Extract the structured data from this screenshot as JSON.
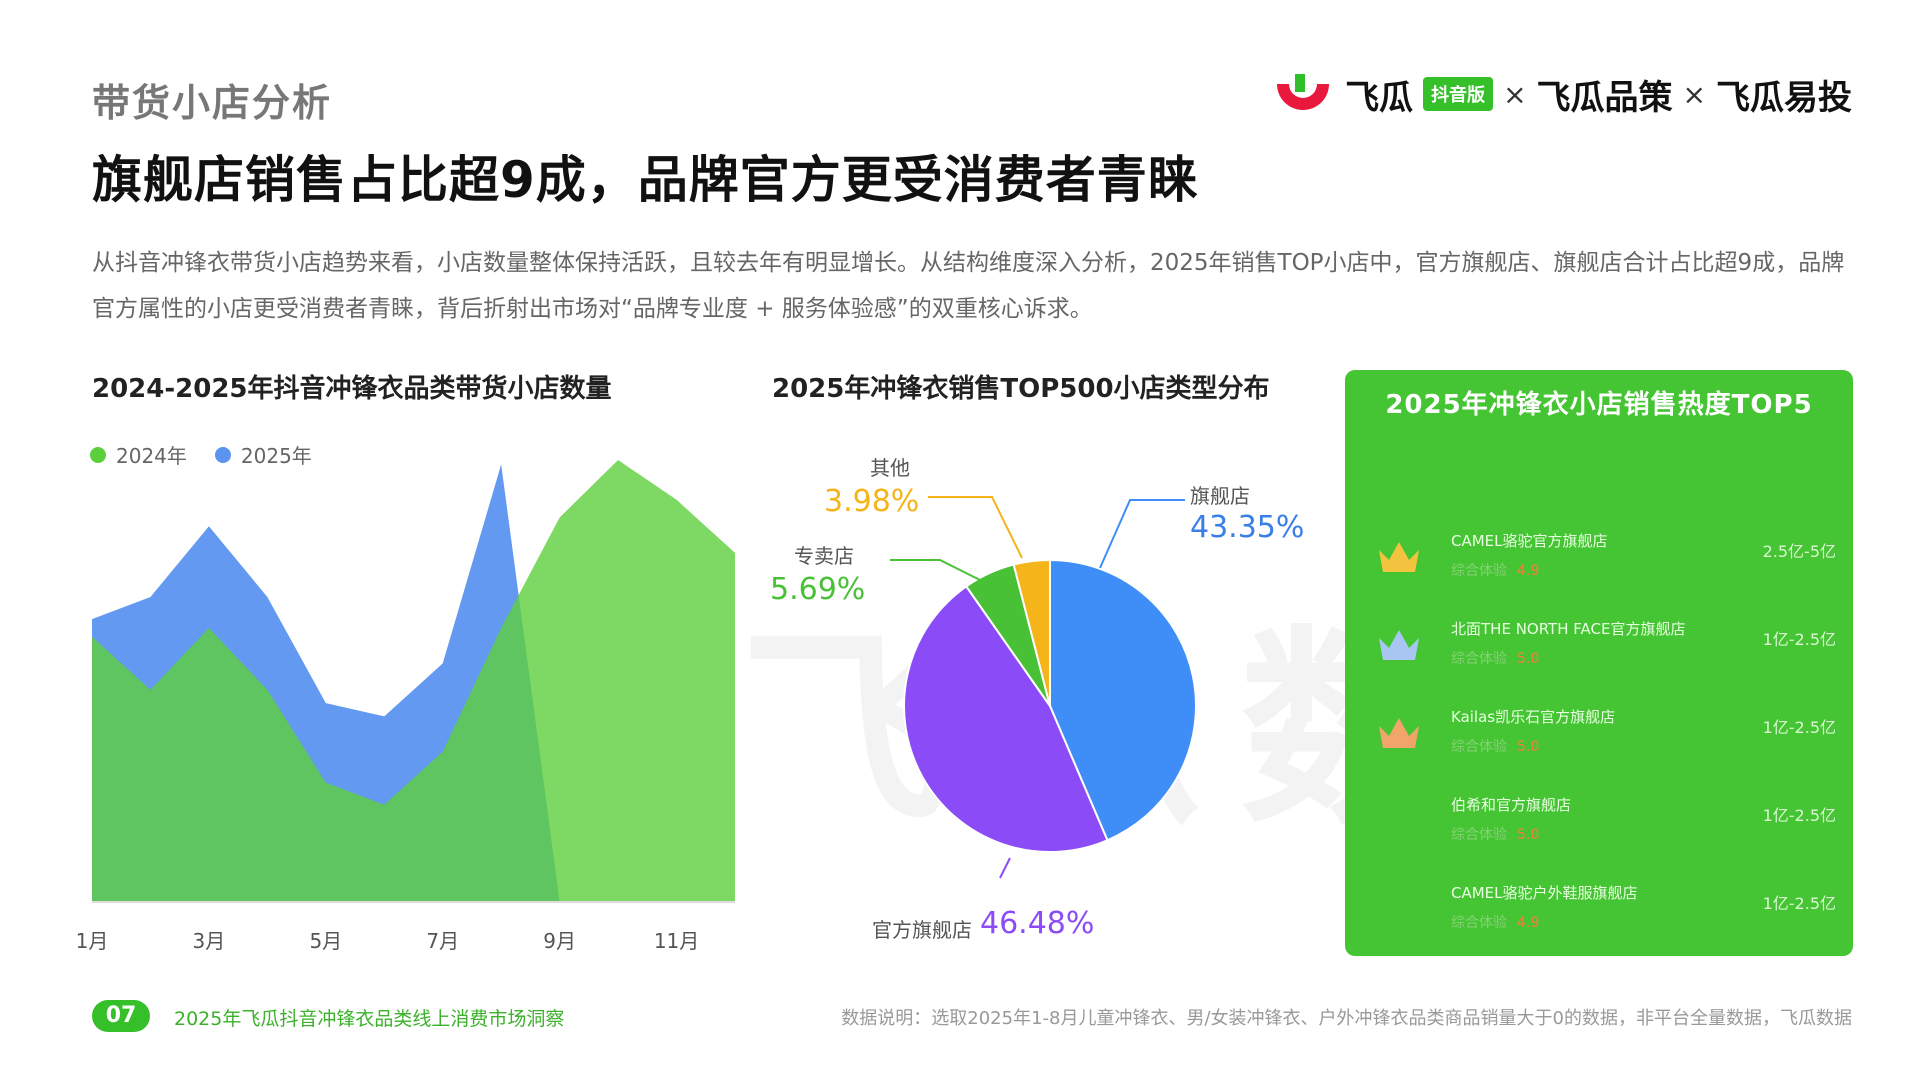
{
  "header": {
    "section_title": "带货小店分析",
    "headline": "旗舰店销售占比超9成，品牌官方更受消费者青睐",
    "description": "从抖音冲锋衣带货小店趋势来看，小店数量整体保持活跃，且较去年有明显增长。从结构维度深入分析，2025年销售TOP小店中，官方旗舰店、旗舰店合计占比超9成，品牌官方属性的小店更受消费者青睐，背后折射出市场对“品牌专业度 + 服务体验感”的双重核心诉求。"
  },
  "logo": {
    "brand1": "飞瓜",
    "badge": "抖音版",
    "x1": "×",
    "brand2": "飞瓜品策",
    "x2": "×",
    "brand3": "飞瓜易投"
  },
  "watermark": "飞瓜数据",
  "chart_data": [
    {
      "type": "area",
      "title": "2024-2025年抖音冲锋衣品类带货小店数量",
      "x": [
        "1月",
        "2月",
        "3月",
        "4月",
        "5月",
        "6月",
        "7月",
        "8月",
        "9月",
        "10月",
        "11月",
        "12月"
      ],
      "x_tick_labels": [
        "1月",
        "3月",
        "5月",
        "7月",
        "9月",
        "11月"
      ],
      "ylim": [
        0,
        100
      ],
      "series": [
        {
          "name": "2024年",
          "color": "#5ccf3c",
          "values": [
            60,
            48,
            62,
            48,
            27,
            22,
            34,
            62,
            87,
            100,
            91,
            79
          ]
        },
        {
          "name": "2025年",
          "color": "#5b93f0",
          "values": [
            64,
            69,
            85,
            69,
            45,
            42,
            54,
            99,
            0,
            0,
            0,
            0
          ]
        }
      ],
      "legend_position": "top-left"
    },
    {
      "type": "pie",
      "title": "2025年冲锋衣销售TOP500小店类型分布",
      "slices": [
        {
          "label": "旗舰店",
          "value": 43.35,
          "display": "43.35%",
          "color": "#3f8ef7",
          "value_color": "#3a7fe8"
        },
        {
          "label": "官方旗舰店",
          "value": 46.48,
          "display": "46.48%",
          "color": "#8b4cf7",
          "value_color": "#8b4cf7"
        },
        {
          "label": "专卖店",
          "value": 5.69,
          "display": "5.69%",
          "color": "#49c137",
          "value_color": "#49c137"
        },
        {
          "label": "其他",
          "value": 3.98,
          "display": "3.98%",
          "color": "#f5b419",
          "value_color": "#f5b419"
        }
      ]
    }
  ],
  "top5": {
    "title": "2025年冲锋衣小店销售热度TOP5",
    "items": [
      {
        "name": "CAMEL骆驼官方旗舰店",
        "sub": "综合体验",
        "score": "4.9",
        "range": "2.5亿-5亿",
        "crown_color": "#f3c340"
      },
      {
        "name": "北面THE NORTH FACE官方旗舰店",
        "sub": "综合体验",
        "score": "5.0",
        "range": "1亿-2.5亿",
        "crown_color": "#a9c6f2"
      },
      {
        "name": "Kailas凯乐石官方旗舰店",
        "sub": "综合体验",
        "score": "5.0",
        "range": "1亿-2.5亿",
        "crown_color": "#f1a56a"
      },
      {
        "name": "伯希和官方旗舰店",
        "sub": "综合体验",
        "score": "5.0",
        "range": "1亿-2.5亿",
        "crown_color": ""
      },
      {
        "name": "CAMEL骆驼户外鞋服旗舰店",
        "sub": "综合体验",
        "score": "4.9",
        "range": "1亿-2.5亿",
        "crown_color": ""
      }
    ]
  },
  "footer": {
    "page_number": "07",
    "report_title": "2025年飞瓜抖音冲锋衣品类线上消费市场洞察",
    "note": "数据说明：选取2025年1-8月儿童冲锋衣、男/女装冲锋衣、户外冲锋衣品类商品销量大于0的数据，非平台全量数据，飞瓜数据"
  }
}
